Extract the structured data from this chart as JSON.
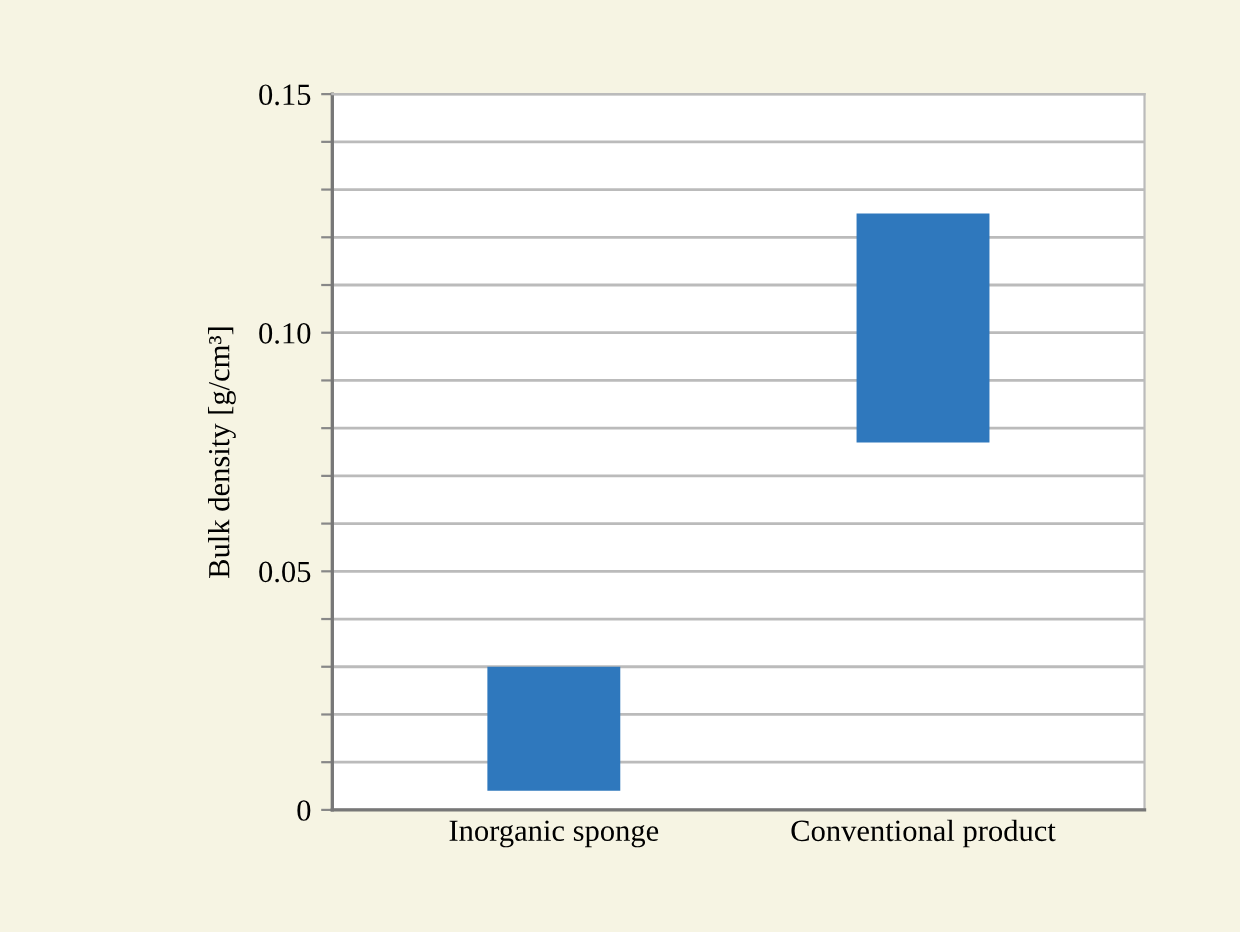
{
  "chart_data": {
    "type": "bar",
    "ylabel": "Bulk density [g/cm³]",
    "categories": [
      "Inorganic sponge",
      "Conventional product"
    ],
    "values": [
      0.026,
      0.048
    ],
    "base": [
      0.004,
      0.077
    ],
    "color": "#2f78bd",
    "ylim": [
      0,
      0.15
    ],
    "yticks": [
      {
        "value": 0,
        "label": "0"
      },
      {
        "value": 0.01,
        "label": null
      },
      {
        "value": 0.02,
        "label": null
      },
      {
        "value": 0.03,
        "label": null
      },
      {
        "value": 0.04,
        "label": null
      },
      {
        "value": 0.05,
        "label": "0.05"
      },
      {
        "value": 0.06,
        "label": null
      },
      {
        "value": 0.07,
        "label": null
      },
      {
        "value": 0.08,
        "label": null
      },
      {
        "value": 0.09,
        "label": null
      },
      {
        "value": 0.1,
        "label": "0.10"
      },
      {
        "value": 0.11,
        "label": null
      },
      {
        "value": 0.12,
        "label": null
      },
      {
        "value": 0.13,
        "label": null
      },
      {
        "value": 0.14,
        "label": null
      },
      {
        "value": 0.15,
        "label": "0.15"
      }
    ],
    "grid": "y"
  }
}
